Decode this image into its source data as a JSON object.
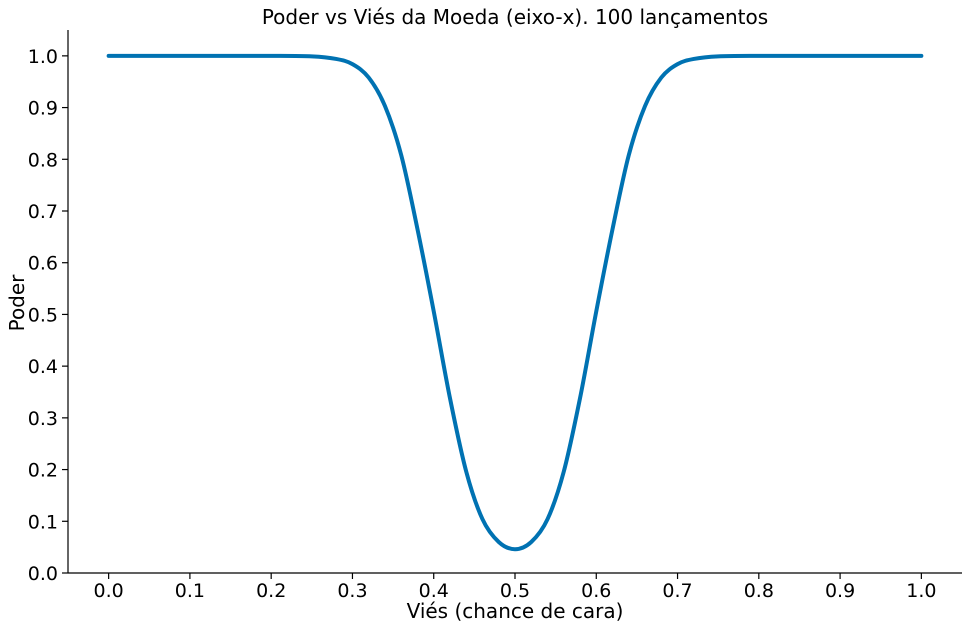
{
  "chart_data": {
    "type": "line",
    "title": "Poder vs Viés da Moeda (eixo-x). 100 lançamentos",
    "xlabel": "Viés (chance de cara)",
    "ylabel": "Poder",
    "xlim": [
      -0.05,
      1.05
    ],
    "ylim": [
      0.0,
      1.05
    ],
    "xticks": [
      "0.0",
      "0.1",
      "0.2",
      "0.3",
      "0.4",
      "0.5",
      "0.6",
      "0.7",
      "0.8",
      "0.9",
      "1.0"
    ],
    "yticks": [
      "0.0",
      "0.1",
      "0.2",
      "0.3",
      "0.4",
      "0.5",
      "0.6",
      "0.7",
      "0.8",
      "0.9",
      "1.0"
    ],
    "grid": false,
    "series": [
      {
        "color": "#0072b2",
        "x": [
          0.0,
          0.05,
          0.1,
          0.15,
          0.2,
          0.25,
          0.28,
          0.3,
          0.32,
          0.34,
          0.36,
          0.38,
          0.4,
          0.42,
          0.44,
          0.46,
          0.48,
          0.5,
          0.52,
          0.54,
          0.56,
          0.58,
          0.6,
          0.62,
          0.64,
          0.66,
          0.68,
          0.7,
          0.72,
          0.75,
          0.8,
          0.85,
          0.9,
          0.95,
          1.0
        ],
        "y": [
          1.0,
          1.0,
          1.0,
          1.0,
          1.0,
          0.999,
          0.994,
          0.984,
          0.958,
          0.903,
          0.808,
          0.665,
          0.506,
          0.338,
          0.196,
          0.104,
          0.06,
          0.046,
          0.06,
          0.104,
          0.196,
          0.338,
          0.506,
          0.665,
          0.808,
          0.903,
          0.958,
          0.984,
          0.994,
          0.999,
          1.0,
          1.0,
          1.0,
          1.0,
          1.0
        ]
      }
    ]
  }
}
